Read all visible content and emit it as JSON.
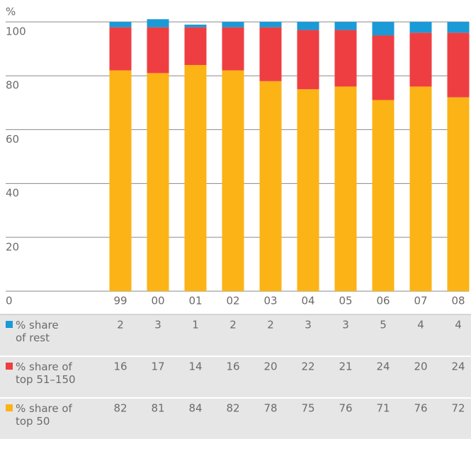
{
  "chart_data": {
    "type": "stacked_bar",
    "y_label": "%",
    "categories": [
      "99",
      "00",
      "01",
      "02",
      "03",
      "04",
      "05",
      "06",
      "07",
      "08"
    ],
    "series": [
      {
        "name": "% share of\ntop 50",
        "color": "#fbb316",
        "values": [
          82,
          81,
          84,
          82,
          78,
          75,
          76,
          71,
          76,
          72
        ]
      },
      {
        "name": "% share of\ntop 51–150",
        "color": "#ee3e42",
        "values": [
          16,
          17,
          14,
          16,
          20,
          22,
          21,
          24,
          20,
          24
        ]
      },
      {
        "name": "% share\nof rest",
        "color": "#1a9ad6",
        "values": [
          2,
          3,
          1,
          2,
          2,
          3,
          3,
          5,
          4,
          4
        ]
      }
    ],
    "ylim": [
      0,
      100
    ],
    "yticks": [
      0,
      20,
      40,
      60,
      80,
      100
    ],
    "grid": true
  }
}
